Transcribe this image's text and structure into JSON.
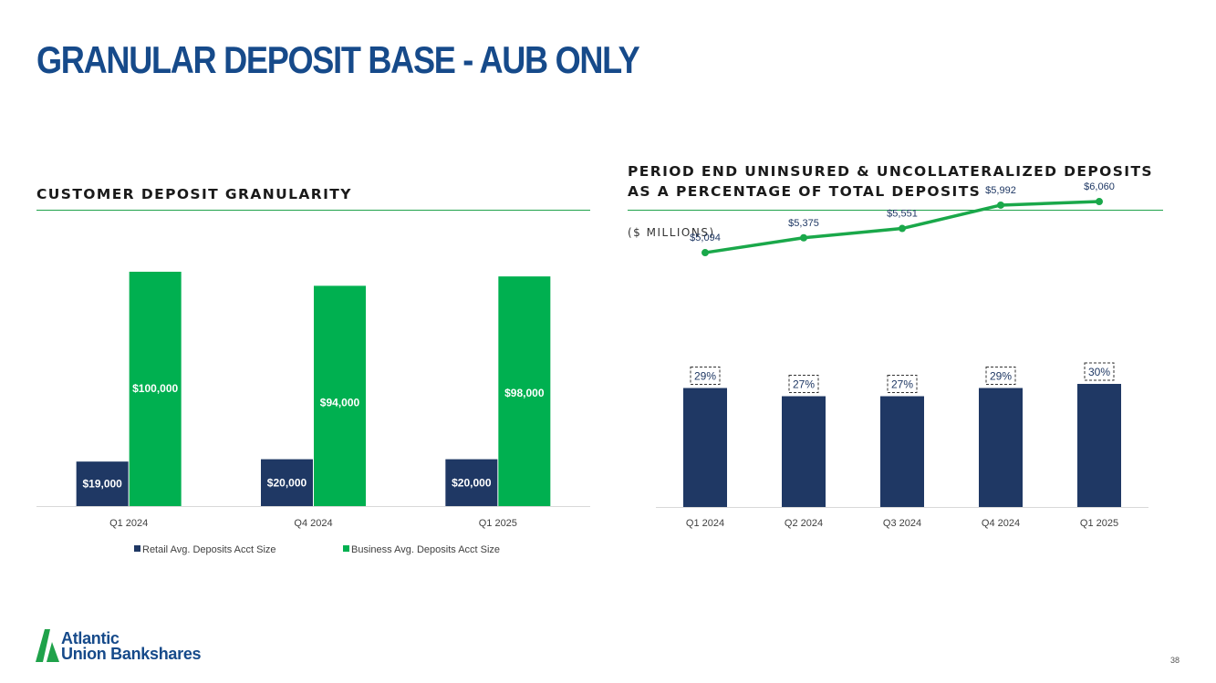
{
  "page": {
    "title": "GRANULAR DEPOSIT BASE - AUB ONLY",
    "page_number": "38",
    "logo_name": "Atlantic Union Bankshares",
    "logo_line1": "Atlantic",
    "logo_line2": "Union Bankshares",
    "colors": {
      "navy": "#1f3864",
      "green": "#00b050",
      "title_blue": "#164a8a",
      "rule_green": "#1fa24a"
    }
  },
  "left_panel": {
    "title": "CUSTOMER DEPOSIT GRANULARITY"
  },
  "right_panel": {
    "title_line1": "PERIOD END UNINSURED & UNCOLLATERALIZED DEPOSITS",
    "title_line2": "AS A PERCENTAGE OF TOTAL DEPOSITS",
    "subtitle": "($ MILLIONS)"
  },
  "chart_data": [
    {
      "type": "bar",
      "categories": [
        "Q1 2024",
        "Q4 2024",
        "Q1 2025"
      ],
      "series": [
        {
          "name": "Retail Avg. Deposits Acct Size",
          "values": [
            19000,
            20000,
            20000
          ],
          "labels": [
            "$19,000",
            "$20,000",
            "$20,000"
          ],
          "color": "#1f3864"
        },
        {
          "name": "Business Avg. Deposits Acct Size",
          "values": [
            100000,
            94000,
            98000
          ],
          "labels": [
            "$100,000",
            "$94,000",
            "$98,000"
          ],
          "color": "#00b050"
        }
      ],
      "legend": "bottom",
      "grid": false
    },
    {
      "type": "bar+line",
      "categories": [
        "Q1 2024",
        "Q2 2024",
        "Q3 2024",
        "Q4 2024",
        "Q1 2025"
      ],
      "bars": {
        "values": [
          29,
          27,
          27,
          29,
          30
        ],
        "labels": [
          "29%",
          "27%",
          "27%",
          "29%",
          "30%"
        ],
        "color": "#1f3864"
      },
      "line": {
        "values": [
          5094,
          5375,
          5551,
          5992,
          6060
        ],
        "labels": [
          "$5,094",
          "$5,375",
          "$5,551",
          "$5,992",
          "$6,060"
        ],
        "color": "#1aa84a"
      },
      "grid": false
    }
  ]
}
